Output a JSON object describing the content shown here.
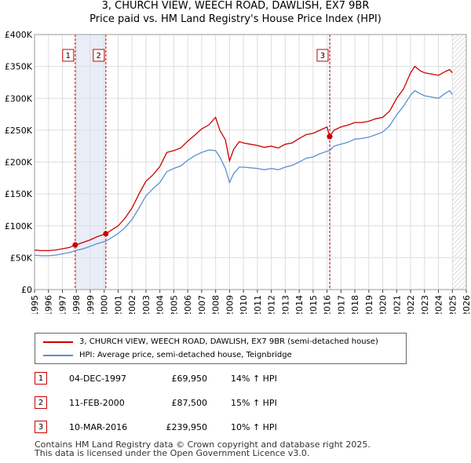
{
  "title_line1": "3, CHURCH VIEW, WEECH ROAD, DAWLISH, EX7 9BR",
  "title_line2": "Price paid vs. HM Land Registry's House Price Index (HPI)",
  "colors": {
    "property": "#cc0000",
    "hpi": "#5b8fd0",
    "shade": "#e8edf8",
    "hatch": "#bbbbbb"
  },
  "chart_data": {
    "type": "line",
    "title": "3, CHURCH VIEW, WEECH ROAD, DAWLISH, EX7 9BR",
    "subtitle": "Price paid vs. HM Land Registry's House Price Index (HPI)",
    "xlabel": "",
    "ylabel": "",
    "xlim": [
      1995,
      2026
    ],
    "ylim": [
      0,
      400000
    ],
    "yticks": [
      0,
      50000,
      100000,
      150000,
      200000,
      250000,
      300000,
      350000,
      400000
    ],
    "ytick_labels": [
      "£0",
      "£50K",
      "£100K",
      "£150K",
      "£200K",
      "£250K",
      "£300K",
      "£350K",
      "£400K"
    ],
    "xticks": [
      "1995",
      "1996",
      "1997",
      "1998",
      "1999",
      "2000",
      "2001",
      "2002",
      "2003",
      "2004",
      "2005",
      "2006",
      "2007",
      "2008",
      "2009",
      "2010",
      "2011",
      "2012",
      "2013",
      "2014",
      "2015",
      "2016",
      "2017",
      "2018",
      "2019",
      "2020",
      "2021",
      "2022",
      "2023",
      "2024",
      "2025",
      "2026"
    ],
    "grid": true,
    "shaded_ranges": [
      [
        1997.92,
        2000.12
      ],
      [
        2016.19,
        2016.3
      ]
    ],
    "future_hatch_from": 2025.0,
    "series": [
      {
        "name": "3, CHURCH VIEW, WEECH ROAD, DAWLISH, EX7 9BR (semi-detached house)",
        "x": [
          1995,
          1995.5,
          1996,
          1996.5,
          1997,
          1997.5,
          1997.92,
          1998.5,
          1999,
          1999.5,
          2000.12,
          2000.5,
          2001,
          2001.5,
          2002,
          2002.5,
          2003,
          2003.5,
          2004,
          2004.5,
          2005,
          2005.5,
          2006,
          2006.5,
          2007,
          2007.5,
          2008,
          2008.3,
          2008.7,
          2009,
          2009.3,
          2009.7,
          2010,
          2010.5,
          2011,
          2011.5,
          2012,
          2012.5,
          2013,
          2013.5,
          2014,
          2014.5,
          2015,
          2015.5,
          2016,
          2016.19,
          2016.5,
          2017,
          2017.5,
          2018,
          2018.5,
          2019,
          2019.5,
          2020,
          2020.5,
          2021,
          2021.5,
          2022,
          2022.3,
          2022.7,
          2023,
          2023.5,
          2024,
          2024.5,
          2024.8,
          2025
        ],
        "values": [
          62000,
          61000,
          61000,
          62000,
          64000,
          66000,
          69950,
          74000,
          78000,
          83000,
          87500,
          93000,
          100000,
          112000,
          128000,
          150000,
          170000,
          180000,
          193000,
          215000,
          218000,
          222000,
          233000,
          242000,
          252000,
          258000,
          270000,
          250000,
          235000,
          202000,
          220000,
          232000,
          230000,
          228000,
          226000,
          223000,
          225000,
          222000,
          228000,
          230000,
          237000,
          243000,
          245000,
          250000,
          255000,
          239950,
          250000,
          255000,
          258000,
          262000,
          262000,
          264000,
          268000,
          270000,
          280000,
          300000,
          315000,
          340000,
          350000,
          343000,
          340000,
          338000,
          336000,
          342000,
          345000,
          340000
        ]
      },
      {
        "name": "HPI: Average price, semi-detached house, Teignbridge",
        "x": [
          1995,
          1995.5,
          1996,
          1996.5,
          1997,
          1997.5,
          1997.92,
          1998.5,
          1999,
          1999.5,
          2000.12,
          2000.5,
          2001,
          2001.5,
          2002,
          2002.5,
          2003,
          2003.5,
          2004,
          2004.5,
          2005,
          2005.5,
          2006,
          2006.5,
          2007,
          2007.5,
          2008,
          2008.3,
          2008.7,
          2009,
          2009.3,
          2009.7,
          2010,
          2010.5,
          2011,
          2011.5,
          2012,
          2012.5,
          2013,
          2013.5,
          2014,
          2014.5,
          2015,
          2015.5,
          2016,
          2016.19,
          2016.5,
          2017,
          2017.5,
          2018,
          2018.5,
          2019,
          2019.5,
          2020,
          2020.5,
          2021,
          2021.5,
          2022,
          2022.3,
          2022.7,
          2023,
          2023.5,
          2024,
          2024.5,
          2024.8,
          2025
        ],
        "values": [
          54000,
          53000,
          53000,
          54000,
          56000,
          58000,
          61000,
          64000,
          68000,
          72000,
          76000,
          81000,
          88000,
          97000,
          110000,
          128000,
          147000,
          158000,
          168000,
          185000,
          190000,
          194000,
          203000,
          210000,
          215000,
          219000,
          218000,
          208000,
          190000,
          168000,
          182000,
          192000,
          192000,
          191000,
          190000,
          188000,
          190000,
          188000,
          192000,
          195000,
          200000,
          206000,
          208000,
          213000,
          217000,
          218000,
          225000,
          228000,
          231000,
          236000,
          237000,
          239000,
          243000,
          247000,
          257000,
          274000,
          288000,
          305000,
          312000,
          307000,
          304000,
          302000,
          300000,
          308000,
          312000,
          306000
        ]
      }
    ],
    "sales": [
      {
        "n": "1",
        "x": 1997.92,
        "value": 69950
      },
      {
        "n": "2",
        "x": 2000.12,
        "value": 87500
      },
      {
        "n": "3",
        "x": 2016.19,
        "value": 239950
      }
    ]
  },
  "legend": {
    "property": "3, CHURCH VIEW, WEECH ROAD, DAWLISH, EX7 9BR (semi-detached house)",
    "hpi": "HPI: Average price, semi-detached house, Teignbridge"
  },
  "sales_table": [
    {
      "n": "1",
      "date": "04-DEC-1997",
      "price": "£69,950",
      "hpi": "14% ↑ HPI"
    },
    {
      "n": "2",
      "date": "11-FEB-2000",
      "price": "£87,500",
      "hpi": "15% ↑ HPI"
    },
    {
      "n": "3",
      "date": "10-MAR-2016",
      "price": "£239,950",
      "hpi": "10% ↑ HPI"
    }
  ],
  "footer": {
    "line1": "Contains HM Land Registry data © Crown copyright and database right 2025.",
    "line2": "This data is licensed under the Open Government Licence v3.0."
  }
}
